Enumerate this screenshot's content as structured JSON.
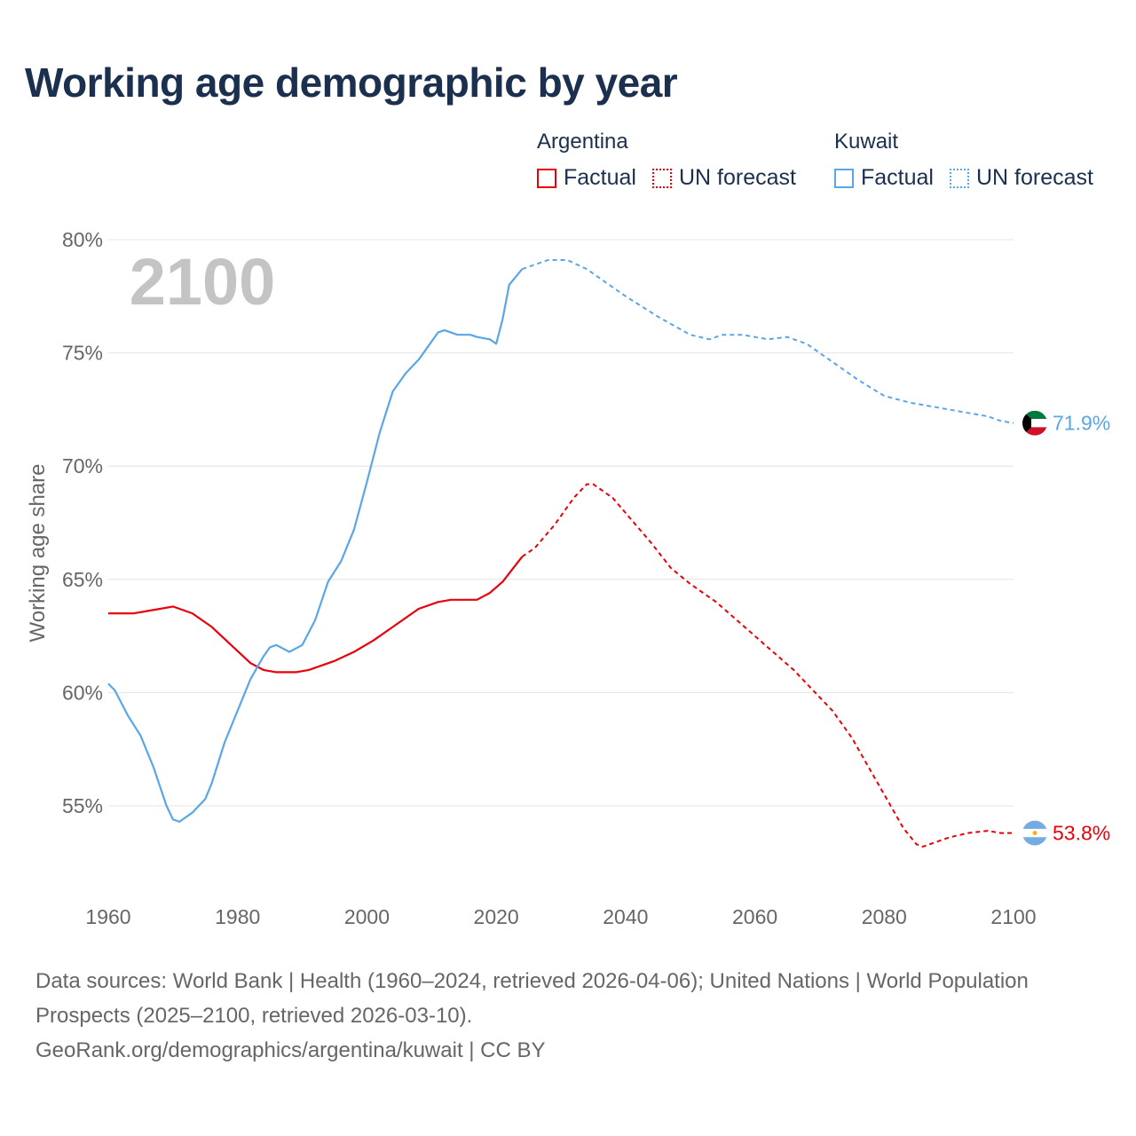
{
  "title": "Working age demographic by year",
  "legend": {
    "groups": [
      {
        "name": "Argentina",
        "items": [
          {
            "label": "Factual",
            "style": "solid",
            "color": "#e8000b"
          },
          {
            "label": "UN forecast",
            "style": "dotted",
            "color": "#e8000b"
          }
        ]
      },
      {
        "name": "Kuwait",
        "items": [
          {
            "label": "Factual",
            "style": "solid",
            "color": "#5aa6e6"
          },
          {
            "label": "UN forecast",
            "style": "dotted",
            "color": "#5aa6e6"
          }
        ]
      }
    ]
  },
  "chart_data": {
    "type": "line",
    "year_watermark": "2100",
    "ylabel": "Working age share",
    "xlim": [
      1960,
      2100
    ],
    "ylim": [
      51.5,
      80
    ],
    "x_ticks": [
      1960,
      1980,
      2000,
      2020,
      2040,
      2060,
      2080,
      2100
    ],
    "y_ticks": [
      55,
      60,
      65,
      70,
      75,
      80
    ],
    "y_tick_labels": [
      "55%",
      "60%",
      "65%",
      "70%",
      "75%",
      "80%"
    ],
    "grid": true,
    "series": [
      {
        "name": "Argentina",
        "color": "#e8000b",
        "end_label": "53.8%",
        "flag": "argentina-flag",
        "factual_end_year": 2024,
        "points": [
          [
            1960,
            63.5
          ],
          [
            1964,
            63.5
          ],
          [
            1966,
            63.6
          ],
          [
            1968,
            63.7
          ],
          [
            1970,
            63.8
          ],
          [
            1973,
            63.5
          ],
          [
            1976,
            62.9
          ],
          [
            1979,
            62.1
          ],
          [
            1982,
            61.3
          ],
          [
            1984,
            61.0
          ],
          [
            1986,
            60.9
          ],
          [
            1989,
            60.9
          ],
          [
            1991,
            61.0
          ],
          [
            1995,
            61.4
          ],
          [
            1998,
            61.8
          ],
          [
            2001,
            62.3
          ],
          [
            2004,
            62.9
          ],
          [
            2008,
            63.7
          ],
          [
            2011,
            64.0
          ],
          [
            2013,
            64.1
          ],
          [
            2017,
            64.1
          ],
          [
            2019,
            64.4
          ],
          [
            2021,
            64.9
          ],
          [
            2024,
            66.0
          ],
          [
            2026,
            66.4
          ],
          [
            2029,
            67.4
          ],
          [
            2032,
            68.6
          ],
          [
            2034,
            69.2
          ],
          [
            2035,
            69.2
          ],
          [
            2038,
            68.6
          ],
          [
            2041,
            67.6
          ],
          [
            2044,
            66.6
          ],
          [
            2047,
            65.5
          ],
          [
            2050,
            64.8
          ],
          [
            2054,
            64.0
          ],
          [
            2058,
            63.0
          ],
          [
            2062,
            62.0
          ],
          [
            2066,
            61.0
          ],
          [
            2070,
            59.8
          ],
          [
            2072,
            59.2
          ],
          [
            2075,
            58.0
          ],
          [
            2078,
            56.5
          ],
          [
            2081,
            55.0
          ],
          [
            2083,
            54.0
          ],
          [
            2085,
            53.3
          ],
          [
            2086,
            53.2
          ],
          [
            2088,
            53.4
          ],
          [
            2090,
            53.6
          ],
          [
            2093,
            53.8
          ],
          [
            2096,
            53.9
          ],
          [
            2098,
            53.8
          ],
          [
            2100,
            53.8
          ]
        ]
      },
      {
        "name": "Kuwait",
        "color": "#5aa6e6",
        "end_label": "71.9%",
        "flag": "kuwait-flag",
        "factual_end_year": 2024,
        "points": [
          [
            1960,
            60.4
          ],
          [
            1961,
            60.1
          ],
          [
            1963,
            59.0
          ],
          [
            1965,
            58.1
          ],
          [
            1967,
            56.7
          ],
          [
            1969,
            55.0
          ],
          [
            1970,
            54.4
          ],
          [
            1971,
            54.3
          ],
          [
            1973,
            54.7
          ],
          [
            1975,
            55.3
          ],
          [
            1976,
            56.0
          ],
          [
            1978,
            57.8
          ],
          [
            1980,
            59.2
          ],
          [
            1982,
            60.6
          ],
          [
            1984,
            61.6
          ],
          [
            1985,
            62.0
          ],
          [
            1986,
            62.1
          ],
          [
            1988,
            61.8
          ],
          [
            1990,
            62.1
          ],
          [
            1992,
            63.2
          ],
          [
            1994,
            64.9
          ],
          [
            1996,
            65.8
          ],
          [
            1998,
            67.2
          ],
          [
            2000,
            69.3
          ],
          [
            2002,
            71.5
          ],
          [
            2004,
            73.3
          ],
          [
            2006,
            74.1
          ],
          [
            2008,
            74.7
          ],
          [
            2010,
            75.5
          ],
          [
            2011,
            75.9
          ],
          [
            2012,
            76.0
          ],
          [
            2014,
            75.8
          ],
          [
            2016,
            75.8
          ],
          [
            2017,
            75.7
          ],
          [
            2019,
            75.6
          ],
          [
            2020,
            75.4
          ],
          [
            2021,
            76.5
          ],
          [
            2022,
            78.0
          ],
          [
            2024,
            78.7
          ],
          [
            2026,
            78.9
          ],
          [
            2028,
            79.1
          ],
          [
            2031,
            79.1
          ],
          [
            2034,
            78.7
          ],
          [
            2040,
            77.5
          ],
          [
            2045,
            76.6
          ],
          [
            2050,
            75.8
          ],
          [
            2053,
            75.6
          ],
          [
            2055,
            75.8
          ],
          [
            2058,
            75.8
          ],
          [
            2060,
            75.7
          ],
          [
            2062,
            75.6
          ],
          [
            2065,
            75.7
          ],
          [
            2068,
            75.4
          ],
          [
            2072,
            74.6
          ],
          [
            2076,
            73.8
          ],
          [
            2080,
            73.1
          ],
          [
            2084,
            72.8
          ],
          [
            2088,
            72.6
          ],
          [
            2092,
            72.4
          ],
          [
            2096,
            72.2
          ],
          [
            2098,
            72.0
          ],
          [
            2100,
            71.9
          ]
        ]
      }
    ]
  },
  "footer": {
    "sources": "Data sources: World Bank | Health (1960–2024, retrieved 2026-04-06); United Nations | World Population Prospects (2025–2100, retrieved 2026-03-10).",
    "attribution": "GeoRank.org/demographics/argentina/kuwait | CC BY"
  }
}
